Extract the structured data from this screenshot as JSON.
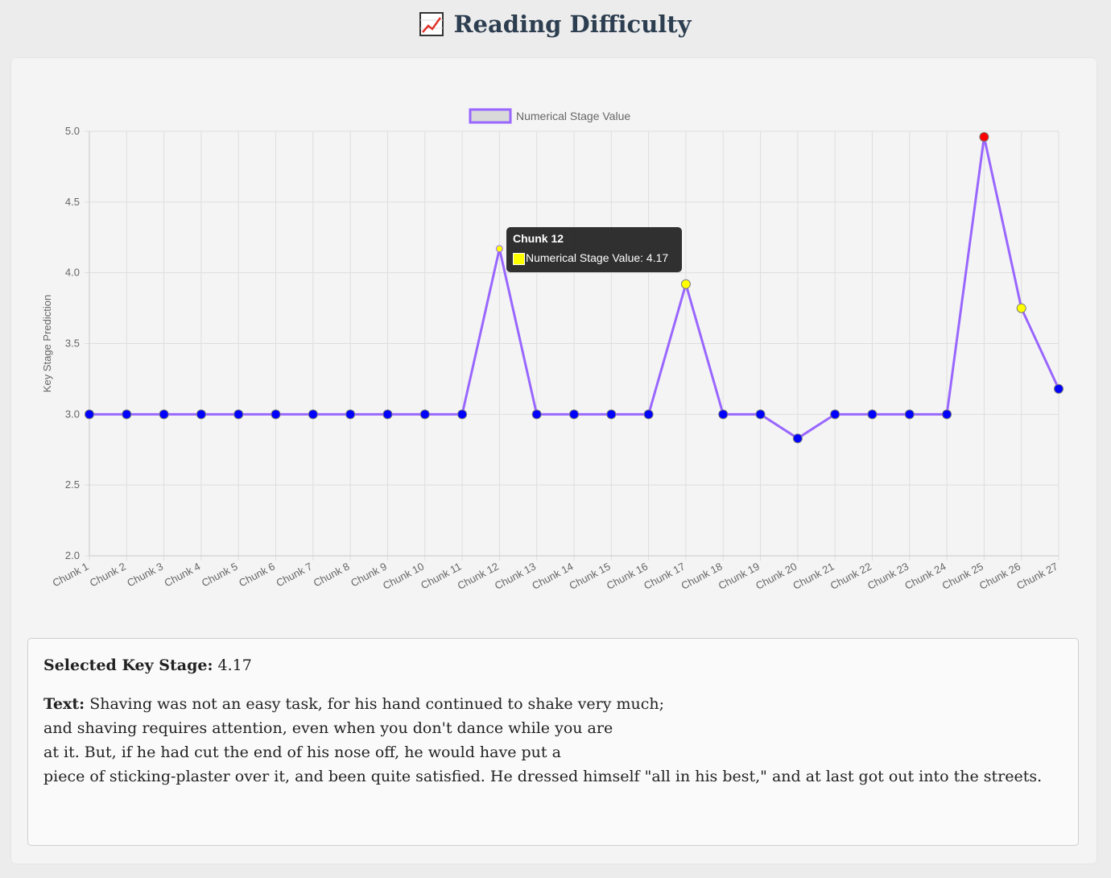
{
  "header": {
    "title": "Reading Difficulty",
    "icon": "chart-increasing-icon"
  },
  "chart_data": {
    "type": "line",
    "title": "",
    "categories": [
      "Chunk 1",
      "Chunk 2",
      "Chunk 3",
      "Chunk 4",
      "Chunk 5",
      "Chunk 6",
      "Chunk 7",
      "Chunk 8",
      "Chunk 9",
      "Chunk 10",
      "Chunk 11",
      "Chunk 12",
      "Chunk 13",
      "Chunk 14",
      "Chunk 15",
      "Chunk 16",
      "Chunk 17",
      "Chunk 18",
      "Chunk 19",
      "Chunk 20",
      "Chunk 21",
      "Chunk 22",
      "Chunk 23",
      "Chunk 24",
      "Chunk 25",
      "Chunk 26",
      "Chunk 27"
    ],
    "series": [
      {
        "name": "Numerical Stage Value",
        "values": [
          3.0,
          3.0,
          3.0,
          3.0,
          3.0,
          3.0,
          3.0,
          3.0,
          3.0,
          3.0,
          3.0,
          4.17,
          3.0,
          3.0,
          3.0,
          3.0,
          3.92,
          3.0,
          3.0,
          2.83,
          3.0,
          3.0,
          3.0,
          3.0,
          4.96,
          3.75,
          3.18
        ],
        "line_color": "#9966ff",
        "point_colors": [
          "#0000ff",
          "#0000ff",
          "#0000ff",
          "#0000ff",
          "#0000ff",
          "#0000ff",
          "#0000ff",
          "#0000ff",
          "#0000ff",
          "#0000ff",
          "#0000ff",
          "#ffff00",
          "#0000ff",
          "#0000ff",
          "#0000ff",
          "#0000ff",
          "#ffff00",
          "#0000ff",
          "#0000ff",
          "#0000ff",
          "#0000ff",
          "#0000ff",
          "#0000ff",
          "#0000ff",
          "#ff0000",
          "#ffff00",
          "#0000ff"
        ]
      }
    ],
    "ylabel": "Key Stage Prediction",
    "xlabel": "",
    "ylim": [
      2.0,
      5.0
    ],
    "yticks": [
      "2.0",
      "2.5",
      "3.0",
      "3.5",
      "4.0",
      "4.5",
      "5.0"
    ],
    "grid": true,
    "legend": "top-center",
    "tooltip": {
      "title": "Chunk 12",
      "label": "Numerical Stage Value: 4.17"
    }
  },
  "info": {
    "stage_label": "Selected Key Stage:",
    "stage_value": "4.17",
    "text_label": "Text:",
    "text_value": "Shaving was not an easy task, for his hand continued to shake very much;\nand shaving requires attention, even when you don't dance while you are\nat it. But, if he had cut the end of his nose off, he would have put a\npiece of sticking-plaster over it, and been quite satisfied. He dressed himself \"all in his best,\" and at last got out into the streets."
  }
}
